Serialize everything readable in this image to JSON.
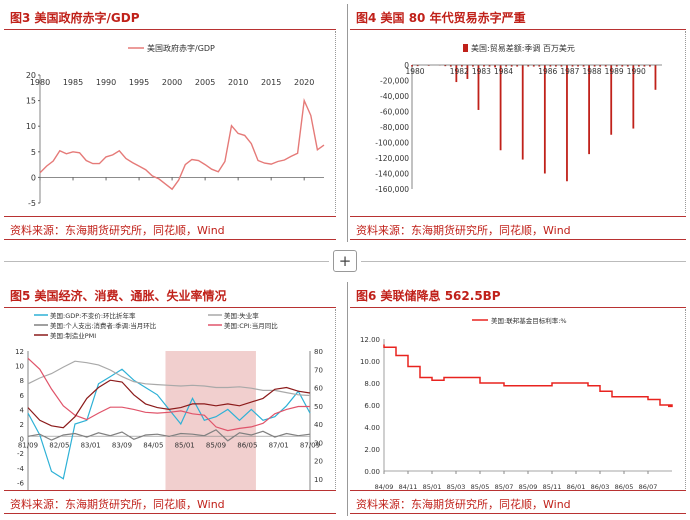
{
  "panels": [
    {
      "title": "图3   美国政府赤字/GDP",
      "source": "资料来源：东海期货研究所，同花顺，Wind"
    },
    {
      "title": "图4   美国 80 年代贸易赤字严重",
      "source": "资料来源：东海期货研究所，同花顺，Wind"
    },
    {
      "title": "图5   美国经济、消费、通胀、失业率情况",
      "source": "资料来源：东海期货研究所，同花顺，Wind"
    },
    {
      "title": "图6   美联储降息 562.5BP",
      "source": "资料来源：东海期货研究所，同花顺，Wind"
    }
  ],
  "add_button": {
    "symbol": "+"
  },
  "chart_data": [
    {
      "type": "line",
      "title": "",
      "series": [
        {
          "name": "美国政府赤字/GDP",
          "color": "#e57a78",
          "x": [
            1980,
            1981,
            1982,
            1983,
            1984,
            1985,
            1986,
            1987,
            1988,
            1989,
            1990,
            1991,
            1992,
            1993,
            1994,
            1995,
            1996,
            1997,
            1998,
            1999,
            2000,
            2001,
            2002,
            2003,
            2004,
            2005,
            2006,
            2007,
            2008,
            2009,
            2010,
            2011,
            2012,
            2013,
            2014,
            2015,
            2016,
            2017,
            2018,
            2019,
            2020,
            2021,
            2022,
            2023
          ],
          "values": [
            0.9,
            2.2,
            3.2,
            5.2,
            4.6,
            5.0,
            4.8,
            3.3,
            2.7,
            2.7,
            4.0,
            4.4,
            5.2,
            3.7,
            2.9,
            2.2,
            1.5,
            0.3,
            -0.3,
            -1.3,
            -2.3,
            -0.5,
            2.5,
            3.5,
            3.3,
            2.5,
            1.6,
            1.1,
            3.1,
            10.1,
            8.6,
            8.2,
            6.6,
            3.3,
            2.8,
            2.6,
            3.1,
            3.4,
            4.1,
            4.7,
            15.0,
            12.1,
            5.4,
            6.3
          ]
        }
      ],
      "x_ticks": [
        "1980",
        "1985",
        "1990",
        "1995",
        "2000",
        "2005",
        "2010",
        "2015",
        "2020"
      ],
      "y_ticks": [
        "20",
        "15",
        "10",
        "5",
        "0",
        "-5"
      ],
      "ylim": [
        -5,
        20
      ],
      "xlim": [
        1980,
        2023
      ],
      "legend": "top-center",
      "grid": false
    },
    {
      "type": "bar",
      "title": "",
      "series": [
        {
          "name": "美国:贸易差额:季调 百万美元",
          "color": "#c0211a",
          "x": [
            1980.0,
            1980.25,
            1980.5,
            1980.75,
            1981.0,
            1981.25,
            1981.5,
            1981.75,
            1982.0,
            1982.25,
            1982.5,
            1982.75,
            1983.0,
            1983.25,
            1983.5,
            1983.75,
            1984.0,
            1984.25,
            1984.5,
            1984.75,
            1985.0,
            1985.25,
            1985.5,
            1985.75,
            1986.0,
            1986.25,
            1986.5,
            1986.75,
            1987.0,
            1987.25,
            1987.5,
            1987.75,
            1988.0,
            1988.25,
            1988.5,
            1988.75,
            1989.0,
            1989.25,
            1989.5,
            1989.75,
            1990.0,
            1990.25,
            1990.5,
            1990.75
          ],
          "values": [
            -2000,
            -1500,
            0,
            -1000,
            0,
            -500,
            -1500,
            -2000,
            -22000,
            -2000,
            -18000,
            -2000,
            -58000,
            -2000,
            -2000,
            -3000,
            -110000,
            -2000,
            -2000,
            -2000,
            -122000,
            -2000,
            -2000,
            -2000,
            -140000,
            -2000,
            -2000,
            -2000,
            -150000,
            -2000,
            -2000,
            -2000,
            -115000,
            -2000,
            -2000,
            -2000,
            -90000,
            -2000,
            -2000,
            -2000,
            -82000,
            -2000,
            -2000,
            -2000
          ]
        },
        {
          "name": "",
          "color": "#c0211a",
          "x": [
            1991.0
          ],
          "values": [
            -32000
          ]
        }
      ],
      "x_ticks": [
        "1980",
        "1982",
        "1983",
        "1984",
        "1986",
        "1987",
        "1988",
        "1989",
        "1990"
      ],
      "y_ticks": [
        "0",
        "-20,000",
        "-40,000",
        "-60,000",
        "-80,000",
        "-100,000",
        "-120,000",
        "-140,000",
        "-160,000"
      ],
      "ylim": [
        -160000,
        0
      ],
      "legend": "top-center",
      "grid": false
    },
    {
      "type": "line",
      "title": "",
      "x_ticks": [
        "81/09",
        "82/05",
        "83/01",
        "83/09",
        "84/05",
        "85/01",
        "85/09",
        "86/05",
        "87/01",
        "87/09"
      ],
      "y_ticks_left": [
        "12",
        "10",
        "8",
        "6",
        "4",
        "2",
        "0",
        "-2",
        "-4",
        "-6",
        "-8"
      ],
      "y_ticks_right": [
        "80",
        "70",
        "60",
        "50",
        "40",
        "30",
        "20",
        "10",
        "0"
      ],
      "ylim_left": [
        -8,
        12
      ],
      "ylim_right": [
        0,
        80
      ],
      "shaded_region": [
        "84/09",
        "86/07"
      ],
      "legend": "top",
      "series": [
        {
          "name": "美国:GDP:不变价:环比折年率",
          "color": "#2eb1d6",
          "axis": "left",
          "values": [
            3.5,
            0.5,
            -4.5,
            -5.5,
            2.0,
            2.5,
            7.5,
            8.5,
            9.5,
            8.0,
            7.0,
            6.0,
            4.0,
            2.0,
            5.5,
            2.5,
            3.0,
            4.0,
            2.5,
            4.0,
            2.5,
            3.0,
            4.5,
            6.5,
            3.5
          ]
        },
        {
          "name": "美国:失业率",
          "color": "#a9a9a9",
          "axis": "left",
          "values": [
            7.5,
            8.3,
            8.9,
            9.8,
            10.6,
            10.4,
            10.1,
            9.4,
            8.5,
            7.8,
            7.5,
            7.4,
            7.3,
            7.2,
            7.3,
            7.2,
            7.0,
            7.0,
            7.1,
            6.9,
            6.6,
            6.6,
            6.3,
            6.0,
            5.9
          ]
        },
        {
          "name": "美国:个人支出:消费者:季调:当月环比",
          "color": "#808080",
          "axis": "left",
          "values": [
            0.3,
            0.6,
            -0.2,
            0.5,
            0.7,
            0.2,
            0.8,
            0.4,
            0.9,
            -0.1,
            0.5,
            0.6,
            0.3,
            0.7,
            0.6,
            0.4,
            1.2,
            -0.3,
            0.8,
            0.5,
            1.0,
            0.2,
            0.7,
            0.4,
            0.6
          ]
        },
        {
          "name": "美国:CPI:当月同比",
          "color": "#e0546a",
          "axis": "left",
          "values": [
            11.0,
            9.5,
            6.8,
            4.5,
            3.2,
            2.6,
            3.5,
            4.3,
            4.3,
            4.0,
            3.6,
            3.5,
            3.6,
            3.8,
            3.4,
            3.2,
            1.6,
            1.1,
            1.4,
            1.6,
            2.1,
            3.4,
            4.0,
            4.4,
            4.4
          ]
        },
        {
          "name": "美国:制造业PMI",
          "color": "#8b1a1a",
          "axis": "right",
          "values": [
            49,
            42,
            39,
            38,
            44,
            54,
            60,
            64,
            63,
            56,
            51,
            49,
            48,
            49,
            51,
            51,
            50,
            51,
            50,
            52,
            54,
            59,
            60,
            58,
            57
          ]
        }
      ]
    },
    {
      "type": "line",
      "title": "",
      "series": [
        {
          "name": "美国:联邦基金目标利率:%",
          "color": "#e8231f",
          "points": [
            [
              "84/09",
              11.5
            ],
            [
              "84/09",
              11.25
            ],
            [
              "84/10",
              11.0
            ],
            [
              "84/10",
              10.5
            ],
            [
              "84/11",
              10.0
            ],
            [
              "84/11",
              9.5
            ],
            [
              "84/12",
              9.0
            ],
            [
              "84/12",
              8.5
            ],
            [
              "85/01",
              8.25
            ],
            [
              "85/02",
              8.5
            ],
            [
              "85/04",
              8.5
            ],
            [
              "85/05",
              8.0
            ],
            [
              "85/07",
              7.75
            ],
            [
              "85/11",
              8.0
            ],
            [
              "86/02",
              7.75
            ],
            [
              "86/03",
              7.25
            ],
            [
              "86/04",
              6.75
            ],
            [
              "86/07",
              6.5
            ],
            [
              "86/08",
              6.0
            ],
            [
              "86/09",
              5.875
            ]
          ]
        }
      ],
      "x_ticks": [
        "84/09",
        "84/11",
        "85/01",
        "85/03",
        "85/05",
        "85/07",
        "85/09",
        "85/11",
        "86/01",
        "86/03",
        "86/05",
        "86/07"
      ],
      "y_ticks": [
        "12.00",
        "10.00",
        "8.00",
        "6.00",
        "4.00",
        "2.00",
        "0.00"
      ],
      "ylim": [
        0,
        12
      ],
      "legend": "top-center",
      "grid": false
    }
  ]
}
